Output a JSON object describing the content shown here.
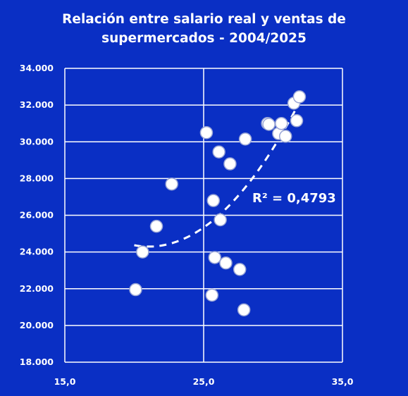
{
  "chart_data": {
    "type": "scatter",
    "title_line1": "Relación entre salario real y ventas de",
    "title_line2": "supermercados - 2004/2025",
    "xlabel": "",
    "ylabel": "",
    "xlim": [
      15,
      35
    ],
    "ylim": [
      18000,
      34000
    ],
    "x_ticks": [
      15,
      25,
      35
    ],
    "x_tick_labels": [
      "15,0",
      "25,0",
      "35,0"
    ],
    "y_ticks": [
      18000,
      20000,
      22000,
      24000,
      26000,
      28000,
      30000,
      32000,
      34000
    ],
    "y_tick_labels": [
      "18.000",
      "20.000",
      "22.000",
      "24.000",
      "26.000",
      "28.000",
      "30.000",
      "32.000",
      "34.000"
    ],
    "grid": true,
    "annotation": "R² = 0,4793",
    "trendline": {
      "type": "polynomial",
      "style": "dashed",
      "x_range": [
        20.0,
        32.0
      ]
    },
    "points": [
      {
        "x": 20.1,
        "y": 21950
      },
      {
        "x": 20.6,
        "y": 24000
      },
      {
        "x": 21.6,
        "y": 25400
      },
      {
        "x": 22.7,
        "y": 27700
      },
      {
        "x": 25.2,
        "y": 30500
      },
      {
        "x": 25.6,
        "y": 21650
      },
      {
        "x": 25.7,
        "y": 26800
      },
      {
        "x": 25.8,
        "y": 23700
      },
      {
        "x": 26.1,
        "y": 29450
      },
      {
        "x": 26.2,
        "y": 25750
      },
      {
        "x": 26.6,
        "y": 23400
      },
      {
        "x": 26.9,
        "y": 28800
      },
      {
        "x": 27.6,
        "y": 23050
      },
      {
        "x": 27.9,
        "y": 20850
      },
      {
        "x": 28.0,
        "y": 30150
      },
      {
        "x": 29.6,
        "y": 31000
      },
      {
        "x": 29.7,
        "y": 30950
      },
      {
        "x": 30.4,
        "y": 30450
      },
      {
        "x": 30.6,
        "y": 31000
      },
      {
        "x": 30.9,
        "y": 30300
      },
      {
        "x": 31.5,
        "y": 32100
      },
      {
        "x": 31.7,
        "y": 31150
      },
      {
        "x": 31.9,
        "y": 32450
      }
    ]
  }
}
